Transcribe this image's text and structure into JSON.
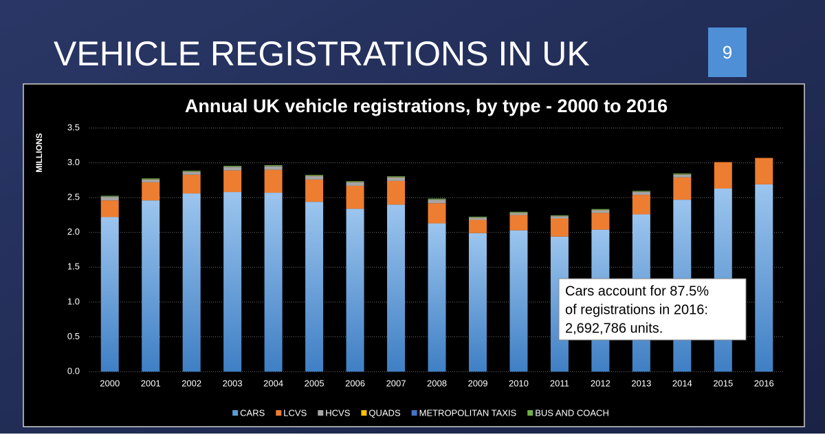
{
  "slide_title": "VEHICLE REGISTRATIONS IN UK",
  "page_number": 9,
  "chart_data": {
    "type": "stacked_bar",
    "title": "Annual UK vehicle registrations, by type - 2000 to 2016",
    "y_label": "MILLIONS",
    "categories": [
      "2000",
      "2001",
      "2002",
      "2003",
      "2004",
      "2005",
      "2006",
      "2007",
      "2008",
      "2009",
      "2010",
      "2011",
      "2012",
      "2013",
      "2014",
      "2015",
      "2016"
    ],
    "series": [
      {
        "name": "CARS",
        "color": "#5b9bd5",
        "values": [
          2.22,
          2.46,
          2.56,
          2.58,
          2.57,
          2.44,
          2.34,
          2.4,
          2.13,
          1.99,
          2.03,
          1.94,
          2.04,
          2.26,
          2.47,
          2.63,
          2.69
        ]
      },
      {
        "name": "LCVS",
        "color": "#ed7d31",
        "values": [
          0.24,
          0.26,
          0.27,
          0.31,
          0.33,
          0.32,
          0.33,
          0.34,
          0.29,
          0.19,
          0.22,
          0.26,
          0.24,
          0.28,
          0.32,
          0.38,
          0.38
        ]
      },
      {
        "name": "HCVS",
        "color": "#a5a5a5",
        "values": [
          0.05,
          0.04,
          0.04,
          0.05,
          0.05,
          0.05,
          0.05,
          0.05,
          0.05,
          0.03,
          0.03,
          0.03,
          0.04,
          0.04,
          0.04,
          null,
          null
        ]
      },
      {
        "name": "QUADS",
        "color": "#ffc000",
        "values": [
          0.003,
          0.003,
          0.003,
          0.003,
          0.003,
          0.003,
          0.003,
          0.003,
          0.003,
          0.003,
          0.003,
          0.003,
          0.003,
          0.003,
          0.003,
          null,
          null
        ]
      },
      {
        "name": "METROPOLITAN TAXIS",
        "color": "#4472c4",
        "values": [
          0.003,
          0.003,
          0.003,
          0.003,
          0.003,
          0.003,
          0.003,
          0.003,
          0.003,
          0.003,
          0.003,
          0.003,
          0.003,
          0.003,
          0.003,
          null,
          null
        ]
      },
      {
        "name": "BUS AND COACH",
        "color": "#70ad47",
        "values": [
          0.01,
          0.01,
          0.01,
          0.01,
          0.01,
          0.01,
          0.01,
          0.01,
          0.01,
          0.01,
          0.01,
          0.01,
          0.01,
          0.01,
          0.01,
          null,
          null
        ]
      }
    ],
    "ylim": [
      0,
      3.5
    ],
    "yticks": [
      {
        "value": 0,
        "label": "0.0"
      },
      0.5,
      {
        "value": 1,
        "label": "1.0"
      },
      1.5,
      {
        "value": 2,
        "label": "2.0"
      },
      2.5,
      {
        "value": 3,
        "label": "3.0"
      },
      3.5
    ],
    "grid": true,
    "legend": "bottom",
    "annotation": [
      "Cars account for 87.5%",
      "of registrations in 2016:",
      "2,692,786 units."
    ]
  }
}
